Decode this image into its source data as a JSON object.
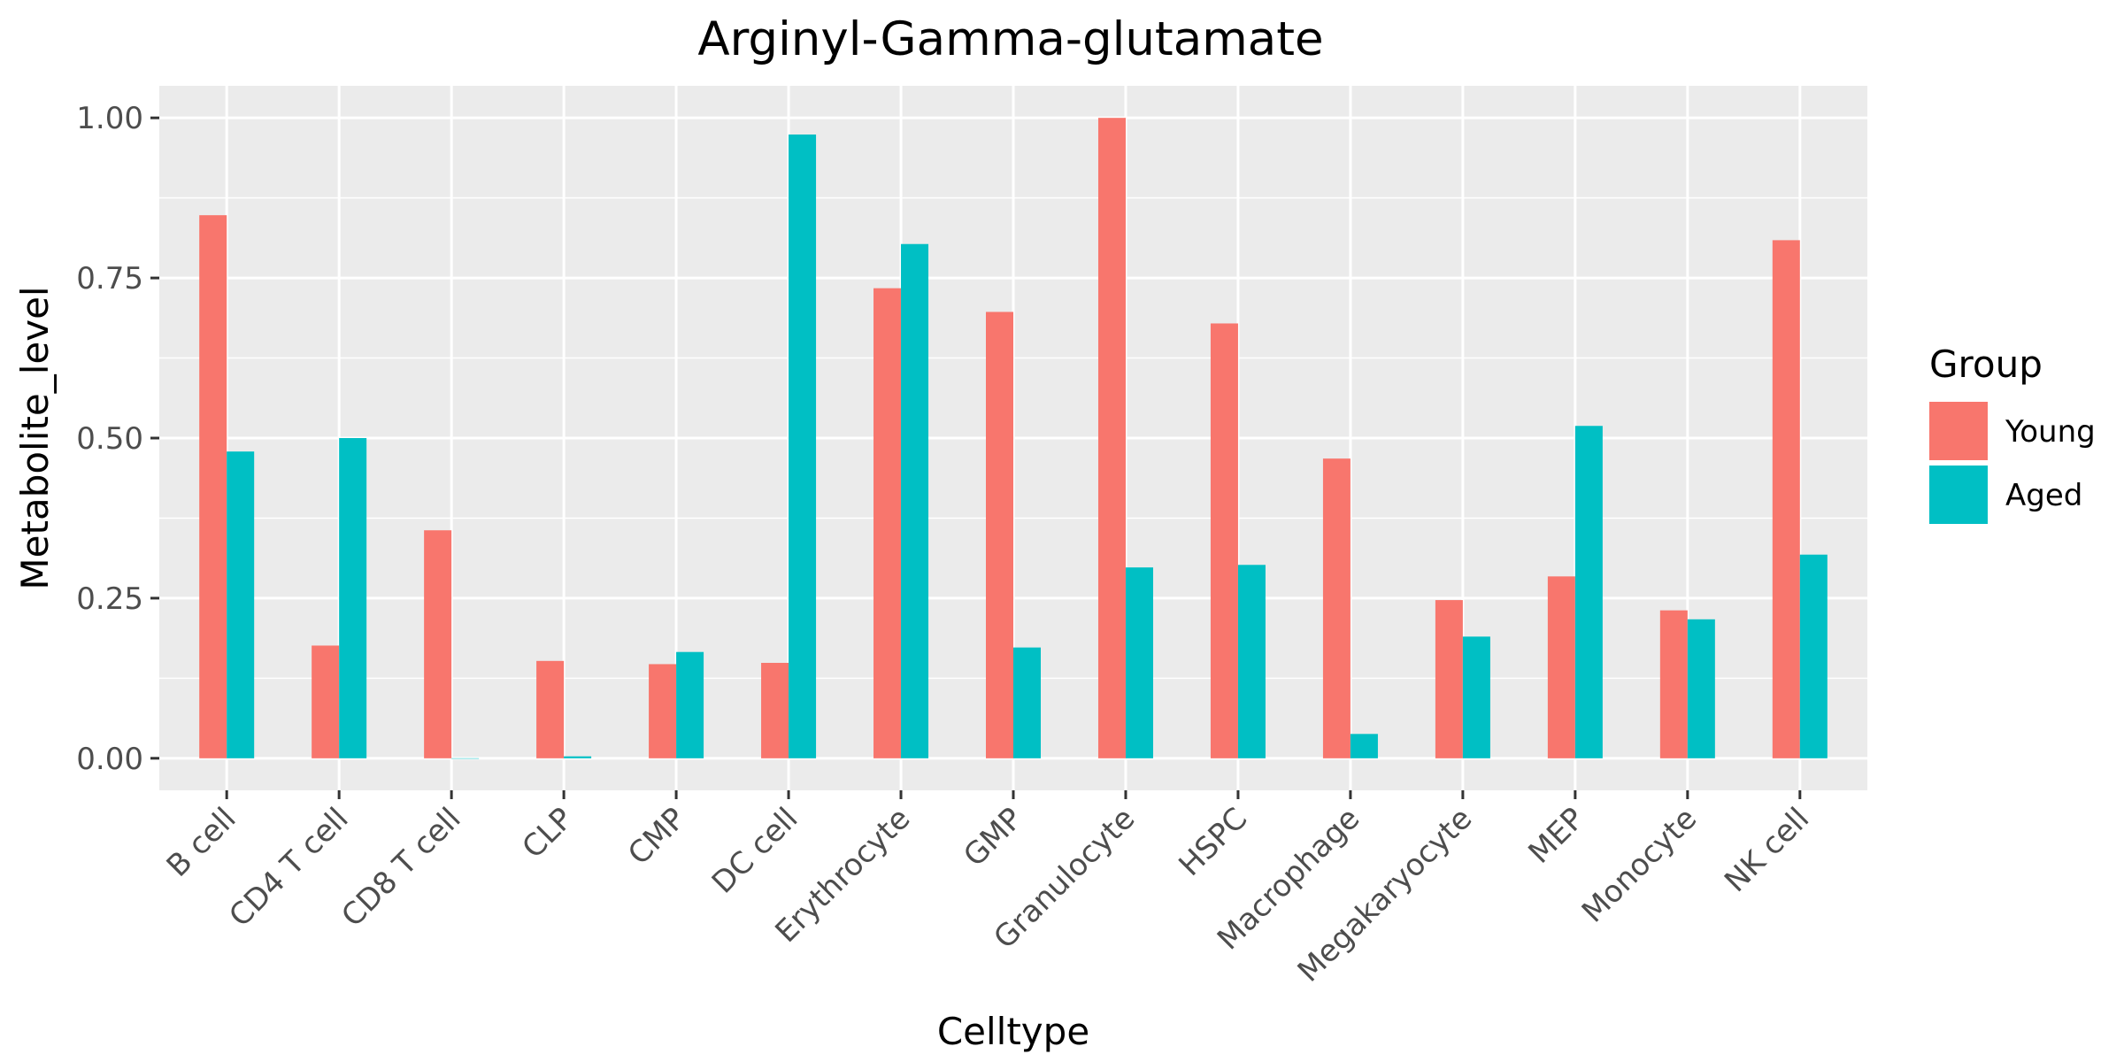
{
  "chart_data": {
    "type": "bar",
    "title": "Arginyl-Gamma-glutamate",
    "xlabel": "Celltype",
    "ylabel": "Metabolite_level",
    "categories": [
      "B cell",
      "CD4 T cell",
      "CD8 T cell",
      "CLP",
      "CMP",
      "DC cell",
      "Erythrocyte",
      "GMP",
      "Granulocyte",
      "HSPC",
      "Macrophage",
      "Megakaryocyte",
      "MEP",
      "Monocyte",
      "NK cell"
    ],
    "series": [
      {
        "name": "Young",
        "color": "#F8766D",
        "values": [
          0.848,
          0.176,
          0.356,
          0.152,
          0.147,
          0.149,
          0.734,
          0.697,
          1.0,
          0.679,
          0.468,
          0.247,
          0.284,
          0.231,
          0.809
        ]
      },
      {
        "name": "Aged",
        "color": "#00BFC4",
        "values": [
          0.479,
          0.5,
          0.0,
          0.003,
          0.166,
          0.974,
          0.803,
          0.173,
          0.298,
          0.302,
          0.038,
          0.19,
          0.519,
          0.217,
          0.318
        ]
      }
    ],
    "ylim": [
      -0.05,
      1.05
    ],
    "yticks": [
      0.0,
      0.25,
      0.5,
      0.75,
      1.0
    ],
    "ytick_labels": [
      "0.00",
      "0.25",
      "0.50",
      "0.75",
      "1.00"
    ],
    "grid": true,
    "legend": {
      "title": "Group",
      "position": "right"
    },
    "panel_background": "#EBEBEB"
  }
}
